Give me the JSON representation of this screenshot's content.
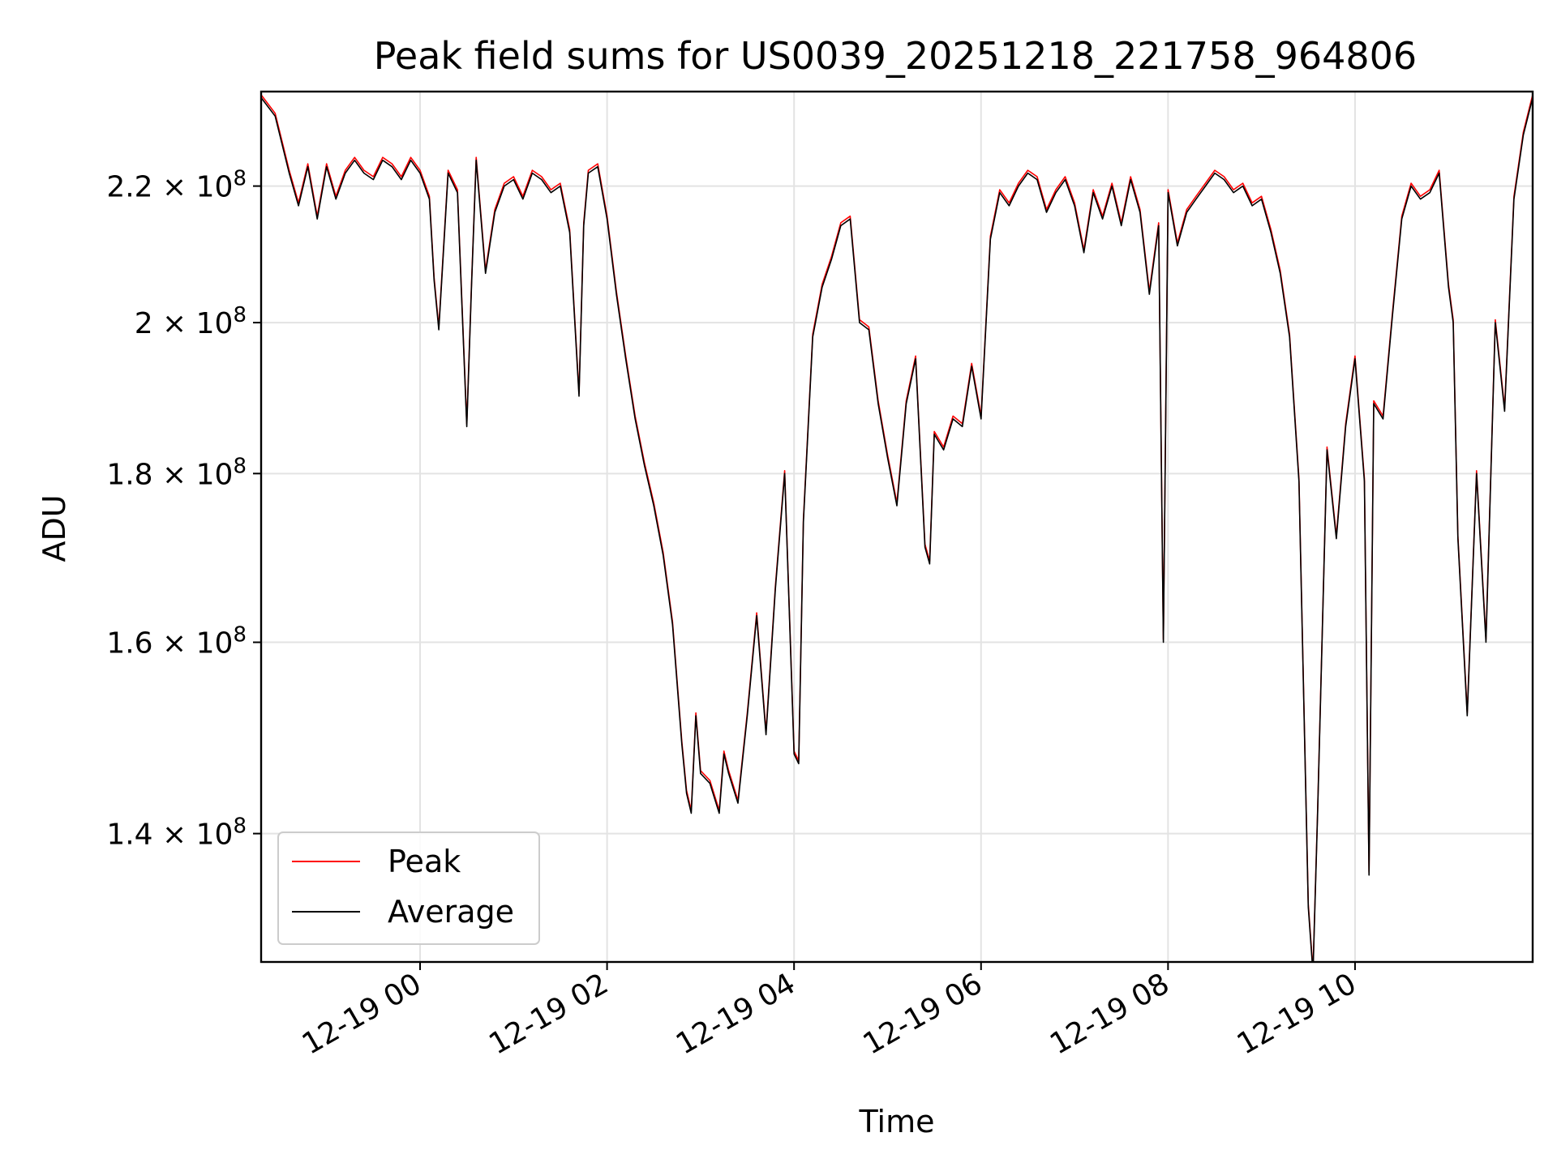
{
  "chart_data": {
    "type": "line",
    "title": "Peak field sums for US0039_20251218_221758_964806",
    "xlabel": "Time",
    "ylabel": "ADU",
    "y_scale": "log",
    "xlim_hours": [
      -1.7,
      11.9
    ],
    "ylim": [
      128000000,
      235000000
    ],
    "x_ticks": [
      {
        "hour": 0,
        "label": "12-19 00"
      },
      {
        "hour": 2,
        "label": "12-19 02"
      },
      {
        "hour": 4,
        "label": "12-19 04"
      },
      {
        "hour": 6,
        "label": "12-19 06"
      },
      {
        "hour": 8,
        "label": "12-19 08"
      },
      {
        "hour": 10,
        "label": "12-19 10"
      }
    ],
    "y_ticks": [
      {
        "value": 140000000,
        "mantissa": "1.4",
        "exp": "8"
      },
      {
        "value": 160000000,
        "mantissa": "1.6",
        "exp": "8"
      },
      {
        "value": 180000000,
        "mantissa": "1.8",
        "exp": "8"
      },
      {
        "value": 200000000,
        "mantissa": "2",
        "exp": "8"
      },
      {
        "value": 220000000,
        "mantissa": "2.2",
        "exp": "8"
      }
    ],
    "grid": true,
    "legend_position": "lower-left",
    "series": [
      {
        "name": "Peak",
        "color": "#ff0000",
        "offset": 0.002
      },
      {
        "name": "Average",
        "color": "#000000",
        "offset": 0.0
      }
    ],
    "x": [
      -1.7,
      -1.55,
      -1.4,
      -1.3,
      -1.2,
      -1.1,
      -1.0,
      -0.9,
      -0.8,
      -0.7,
      -0.6,
      -0.5,
      -0.4,
      -0.3,
      -0.2,
      -0.1,
      0.0,
      0.1,
      0.15,
      0.2,
      0.3,
      0.4,
      0.5,
      0.55,
      0.6,
      0.7,
      0.8,
      0.9,
      1.0,
      1.1,
      1.2,
      1.3,
      1.4,
      1.5,
      1.6,
      1.7,
      1.75,
      1.8,
      1.9,
      2.0,
      2.1,
      2.2,
      2.3,
      2.4,
      2.5,
      2.6,
      2.7,
      2.8,
      2.85,
      2.9,
      2.95,
      3.0,
      3.1,
      3.2,
      3.25,
      3.3,
      3.4,
      3.5,
      3.6,
      3.7,
      3.8,
      3.9,
      4.0,
      4.05,
      4.1,
      4.2,
      4.3,
      4.4,
      4.5,
      4.6,
      4.7,
      4.8,
      4.9,
      5.0,
      5.1,
      5.2,
      5.3,
      5.4,
      5.45,
      5.5,
      5.6,
      5.7,
      5.8,
      5.9,
      6.0,
      6.1,
      6.2,
      6.3,
      6.4,
      6.5,
      6.6,
      6.7,
      6.8,
      6.9,
      7.0,
      7.1,
      7.2,
      7.3,
      7.4,
      7.5,
      7.6,
      7.7,
      7.8,
      7.9,
      7.95,
      8.0,
      8.1,
      8.2,
      8.3,
      8.4,
      8.5,
      8.6,
      8.7,
      8.8,
      8.9,
      9.0,
      9.1,
      9.2,
      9.3,
      9.4,
      9.5,
      9.55,
      9.6,
      9.7,
      9.8,
      9.9,
      10.0,
      10.1,
      10.15,
      10.2,
      10.3,
      10.4,
      10.5,
      10.6,
      10.7,
      10.8,
      10.9,
      11.0,
      11.05,
      11.1,
      11.2,
      11.3,
      11.4,
      11.5,
      11.6,
      11.7,
      11.8,
      11.9
    ],
    "values": [
      234000000,
      231000000,
      222000000,
      217000000,
      223000000,
      215000000,
      223000000,
      218000000,
      222000000,
      224000000,
      222000000,
      221000000,
      224000000,
      223000000,
      221000000,
      224000000,
      222000000,
      218000000,
      206000000,
      199000000,
      222000000,
      219000000,
      186000000,
      205000000,
      224000000,
      207000000,
      216000000,
      220000000,
      221000000,
      218000000,
      222000000,
      221000000,
      219000000,
      220000000,
      213000000,
      190000000,
      214000000,
      222000000,
      223000000,
      215000000,
      204000000,
      195000000,
      187000000,
      181000000,
      176000000,
      170000000,
      162000000,
      149000000,
      144000000,
      142000000,
      152000000,
      146000000,
      145000000,
      142000000,
      148000000,
      146000000,
      143000000,
      152000000,
      163000000,
      150000000,
      166000000,
      180000000,
      148000000,
      147000000,
      174000000,
      198000000,
      205000000,
      209000000,
      214000000,
      215000000,
      200000000,
      199000000,
      189000000,
      182000000,
      176000000,
      189000000,
      195000000,
      171000000,
      169000000,
      185000000,
      183000000,
      187000000,
      186000000,
      194000000,
      187000000,
      212000000,
      219000000,
      217000000,
      220000000,
      222000000,
      221000000,
      216000000,
      219000000,
      221000000,
      217000000,
      210000000,
      219000000,
      215000000,
      220000000,
      214000000,
      221000000,
      216000000,
      204000000,
      214000000,
      160000000,
      219000000,
      211000000,
      216000000,
      218000000,
      220000000,
      222000000,
      221000000,
      219000000,
      220000000,
      217000000,
      218000000,
      213000000,
      207000000,
      198000000,
      179000000,
      133000000,
      127000000,
      142000000,
      183000000,
      172000000,
      186000000,
      195000000,
      179000000,
      136000000,
      189000000,
      187000000,
      201000000,
      215000000,
      220000000,
      218000000,
      219000000,
      222000000,
      205000000,
      200000000,
      172000000,
      152000000,
      180000000,
      160000000,
      200000000,
      188000000,
      218000000,
      228000000,
      234000000
    ]
  }
}
